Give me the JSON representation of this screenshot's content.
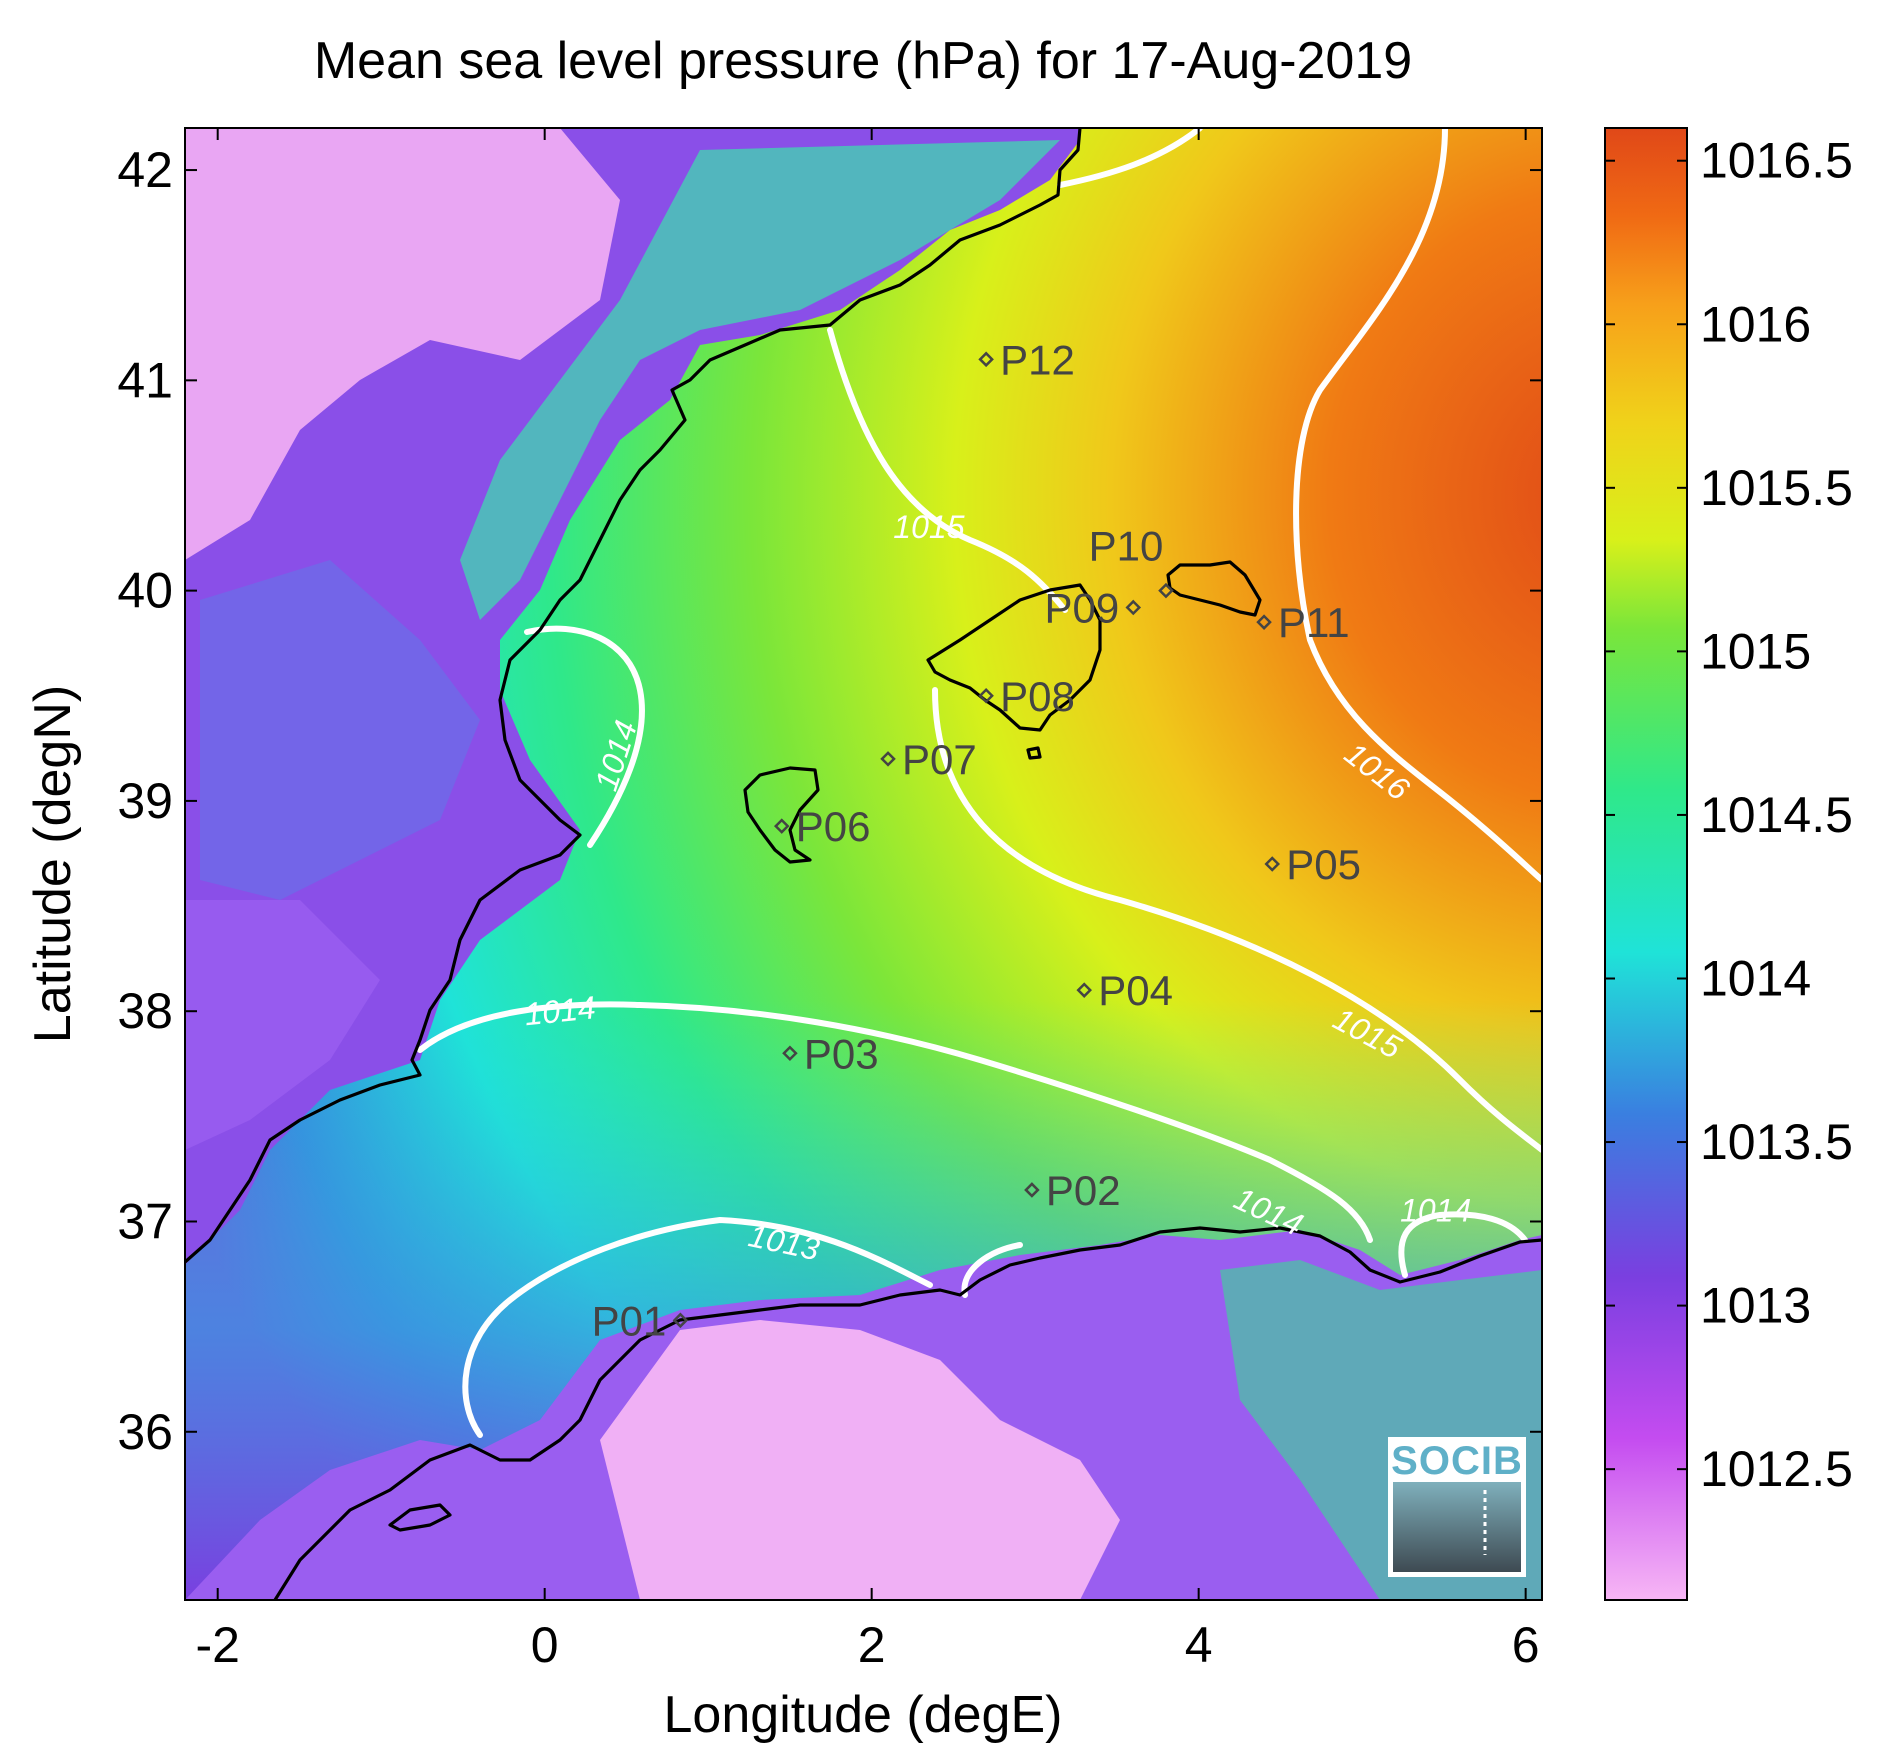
{
  "title": "Mean sea level pressure (hPa) for 17-Aug-2019",
  "xlabel": "Longitude (degE)",
  "ylabel": "Latitude (degN)",
  "x_ticks": [
    "-2",
    "0",
    "2",
    "4",
    "6"
  ],
  "y_ticks": [
    "42",
    "41",
    "40",
    "39",
    "38",
    "37",
    "36"
  ],
  "colorbar_ticks": [
    "1016.5",
    "1016",
    "1015.5",
    "1015",
    "1014.5",
    "1014",
    "1013.5",
    "1013",
    "1012.5"
  ],
  "logo_text": "SOCIB",
  "colors": {
    "land_outline": "#000000",
    "contour": "#ffffff",
    "colormap": [
      "#f7b6f5",
      "#c44cf0",
      "#7a3fe0",
      "#3a7fe0",
      "#1fe3d8",
      "#2fe88a",
      "#7be63a",
      "#d8f01a",
      "#f0d21a",
      "#f7a01a",
      "#f06a14",
      "#e04818"
    ]
  },
  "chart_data": {
    "type": "heatmap",
    "title": "Mean sea level pressure (hPa) for 17-Aug-2019",
    "xlabel": "Longitude (degE)",
    "ylabel": "Latitude (degN)",
    "xlim": [
      -2.2,
      6.1
    ],
    "ylim": [
      35.2,
      42.2
    ],
    "clim": [
      1012.1,
      1016.6
    ],
    "colorbar_label": "",
    "contour_levels": [
      1013,
      1014,
      1015,
      1016
    ],
    "stations": [
      {
        "name": "P01",
        "lon": 0.83,
        "lat": 36.53
      },
      {
        "name": "P02",
        "lon": 2.98,
        "lat": 37.15
      },
      {
        "name": "P03",
        "lon": 1.5,
        "lat": 37.8
      },
      {
        "name": "P04",
        "lon": 3.3,
        "lat": 38.1
      },
      {
        "name": "P05",
        "lon": 4.45,
        "lat": 38.7
      },
      {
        "name": "P06",
        "lon": 1.45,
        "lat": 38.88
      },
      {
        "name": "P07",
        "lon": 2.1,
        "lat": 39.2
      },
      {
        "name": "P08",
        "lon": 2.7,
        "lat": 39.5
      },
      {
        "name": "P09",
        "lon": 3.6,
        "lat": 39.92
      },
      {
        "name": "P10",
        "lon": 3.8,
        "lat": 40.0
      },
      {
        "name": "P11",
        "lon": 4.4,
        "lat": 39.85
      },
      {
        "name": "P12",
        "lon": 2.7,
        "lat": 41.1
      }
    ],
    "contour_labels": [
      {
        "text": "1015",
        "lon": 2.35,
        "lat": 40.25,
        "rotate": 0
      },
      {
        "text": "1014",
        "lon": 0.5,
        "lat": 39.2,
        "rotate": -72
      },
      {
        "text": "1016",
        "lon": 5.05,
        "lat": 39.1,
        "rotate": 38
      },
      {
        "text": "1014",
        "lon": 0.1,
        "lat": 37.95,
        "rotate": -6
      },
      {
        "text": "1015",
        "lon": 5.0,
        "lat": 37.85,
        "rotate": 28
      },
      {
        "text": "1014",
        "lon": 4.4,
        "lat": 37.0,
        "rotate": 25
      },
      {
        "text": "1014",
        "lon": 5.45,
        "lat": 37.0,
        "rotate": 0
      },
      {
        "text": "1013",
        "lon": 1.45,
        "lat": 36.85,
        "rotate": 12
      }
    ]
  }
}
